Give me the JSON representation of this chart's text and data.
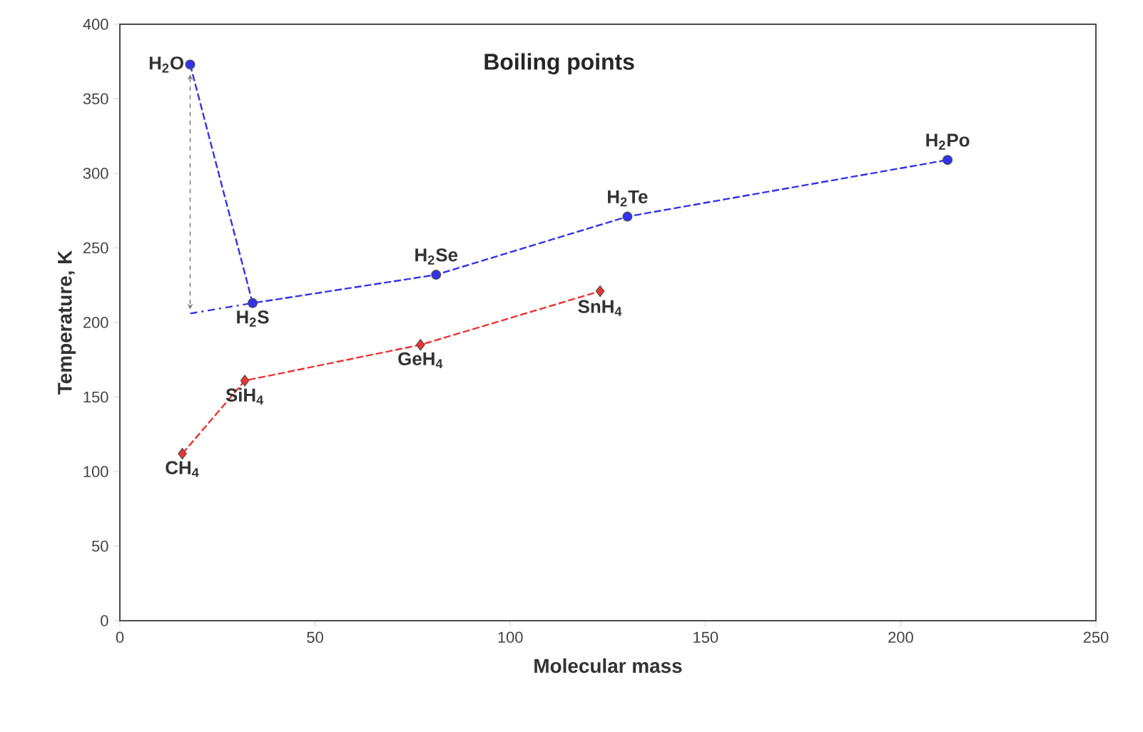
{
  "chart_data": {
    "type": "line",
    "title": "Boiling points",
    "xlabel": "Molecular mass",
    "ylabel": "Temperature, K",
    "xlim": [
      0,
      250
    ],
    "xticks": [
      0,
      50,
      100,
      150,
      200,
      250
    ],
    "ylim": [
      0,
      400
    ],
    "yticks": [
      0,
      50,
      100,
      150,
      200,
      250,
      300,
      350,
      400
    ],
    "series": [
      {
        "x": [
          18,
          34,
          81,
          130,
          212
        ],
        "values": [
          373,
          213,
          232,
          271,
          309
        ],
        "color": "#3333ee",
        "marker": "circle",
        "line_style": "dashed"
      },
      {
        "x": [
          16,
          32,
          77,
          123
        ],
        "values": [
          112,
          161,
          185,
          221
        ],
        "color": "#ee3333",
        "marker": "diamond",
        "line_style": "dashed"
      },
      {
        "x": [
          18,
          34
        ],
        "values": [
          206,
          213
        ],
        "color": "#3333ee",
        "marker": "none",
        "line_style": "dotted"
      }
    ],
    "annotations": [
      {
        "text": "H$_{2}$O",
        "x": 18,
        "y": 373
      },
      {
        "text": "H$_{2}$S",
        "x": 34,
        "y": 213
      },
      {
        "text": "H$_{2}$Se",
        "x": 81,
        "y": 232
      },
      {
        "text": "H$_{2}$Te",
        "x": 130,
        "y": 271
      },
      {
        "text": "H$_{2}$Po",
        "x": 212,
        "y": 309
      },
      {
        "text": "CH$_{4}$",
        "x": 16,
        "y": 112
      },
      {
        "text": "SiH$_{4}$",
        "x": 32,
        "y": 161
      },
      {
        "text": "GeH$_{4}$",
        "x": 77,
        "y": 185
      },
      {
        "text": "SnH$_{4}$",
        "x": 123,
        "y": 221
      }
    ]
  }
}
